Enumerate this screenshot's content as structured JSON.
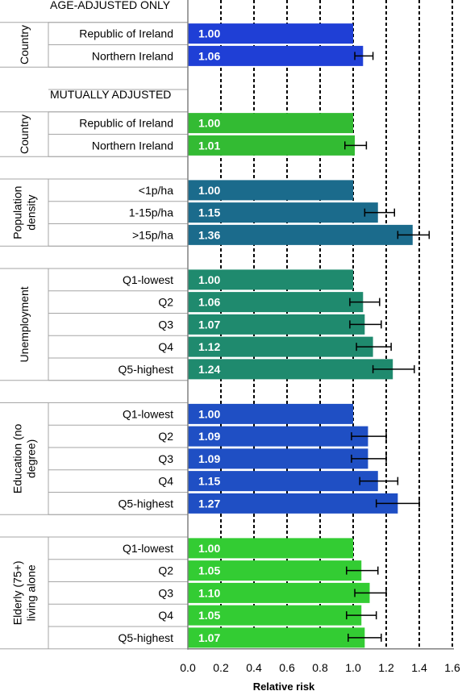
{
  "chart_data": {
    "type": "bar",
    "orientation": "horizontal",
    "xlabel": "Relative risk",
    "xlim": [
      0,
      1.6
    ],
    "xticks": [
      "0.0",
      "0.2",
      "0.4",
      "0.6",
      "0.8",
      "1.0",
      "1.2",
      "1.4",
      "1.6"
    ],
    "grid": "vertical dashed lines",
    "error_bars": true,
    "sections": [
      {
        "title": "AGE-ADJUSTED ONLY",
        "groups": [
          {
            "label": "Country",
            "color": "#1f3fd6",
            "rows": [
              {
                "category": "Republic of Ireland",
                "value": 1.0,
                "value_label": "1.00",
                "ci": null
              },
              {
                "category": "Northern Ireland",
                "value": 1.06,
                "value_label": "1.06",
                "ci": [
                  1.01,
                  1.12
                ]
              }
            ]
          }
        ]
      },
      {
        "title": "MUTUALLY ADJUSTED",
        "groups": [
          {
            "label": "Country",
            "color": "#33bb33",
            "rows": [
              {
                "category": "Republic of Ireland",
                "value": 1.0,
                "value_label": "1.00",
                "ci": null
              },
              {
                "category": "Northern Ireland",
                "value": 1.01,
                "value_label": "1.01",
                "ci": [
                  0.95,
                  1.08
                ]
              }
            ]
          },
          {
            "label": "Population density",
            "color": "#1b6b8c",
            "rows": [
              {
                "category": "<1p/ha",
                "value": 1.0,
                "value_label": "1.00",
                "ci": null
              },
              {
                "category": "1-15p/ha",
                "value": 1.15,
                "value_label": "1.15",
                "ci": [
                  1.07,
                  1.25
                ]
              },
              {
                "category": ">15p/ha",
                "value": 1.36,
                "value_label": "1.36",
                "ci": [
                  1.27,
                  1.46
                ]
              }
            ]
          },
          {
            "label": "Unemployment",
            "color": "#1f8a6e",
            "rows": [
              {
                "category": "Q1-lowest",
                "value": 1.0,
                "value_label": "1.00",
                "ci": null
              },
              {
                "category": "Q2",
                "value": 1.06,
                "value_label": "1.06",
                "ci": [
                  0.98,
                  1.16
                ]
              },
              {
                "category": "Q3",
                "value": 1.07,
                "value_label": "1.07",
                "ci": [
                  0.98,
                  1.17
                ]
              },
              {
                "category": "Q4",
                "value": 1.12,
                "value_label": "1.12",
                "ci": [
                  1.02,
                  1.23
                ]
              },
              {
                "category": "Q5-highest",
                "value": 1.24,
                "value_label": "1.24",
                "ci": [
                  1.12,
                  1.37
                ]
              }
            ]
          },
          {
            "label": "Education (no degree)",
            "color": "#1f4fc4",
            "rows": [
              {
                "category": "Q1-lowest",
                "value": 1.0,
                "value_label": "1.00",
                "ci": null
              },
              {
                "category": "Q2",
                "value": 1.09,
                "value_label": "1.09",
                "ci": [
                  0.99,
                  1.2
                ]
              },
              {
                "category": "Q3",
                "value": 1.09,
                "value_label": "1.09",
                "ci": [
                  0.99,
                  1.2
                ]
              },
              {
                "category": "Q4",
                "value": 1.15,
                "value_label": "1.15",
                "ci": [
                  1.04,
                  1.27
                ]
              },
              {
                "category": "Q5-highest",
                "value": 1.27,
                "value_label": "1.27",
                "ci": [
                  1.14,
                  1.4
                ]
              }
            ]
          },
          {
            "label": "Elderly (75+) living alone",
            "color": "#33cc33",
            "rows": [
              {
                "category": "Q1-lowest",
                "value": 1.0,
                "value_label": "1.00",
                "ci": null
              },
              {
                "category": "Q2",
                "value": 1.05,
                "value_label": "1.05",
                "ci": [
                  0.96,
                  1.15
                ]
              },
              {
                "category": "Q3",
                "value": 1.1,
                "value_label": "1.10",
                "ci": [
                  1.01,
                  1.2
                ]
              },
              {
                "category": "Q4",
                "value": 1.05,
                "value_label": "1.05",
                "ci": [
                  0.96,
                  1.14
                ]
              },
              {
                "category": "Q5-highest",
                "value": 1.07,
                "value_label": "1.07",
                "ci": [
                  0.97,
                  1.17
                ]
              }
            ]
          }
        ]
      }
    ]
  }
}
